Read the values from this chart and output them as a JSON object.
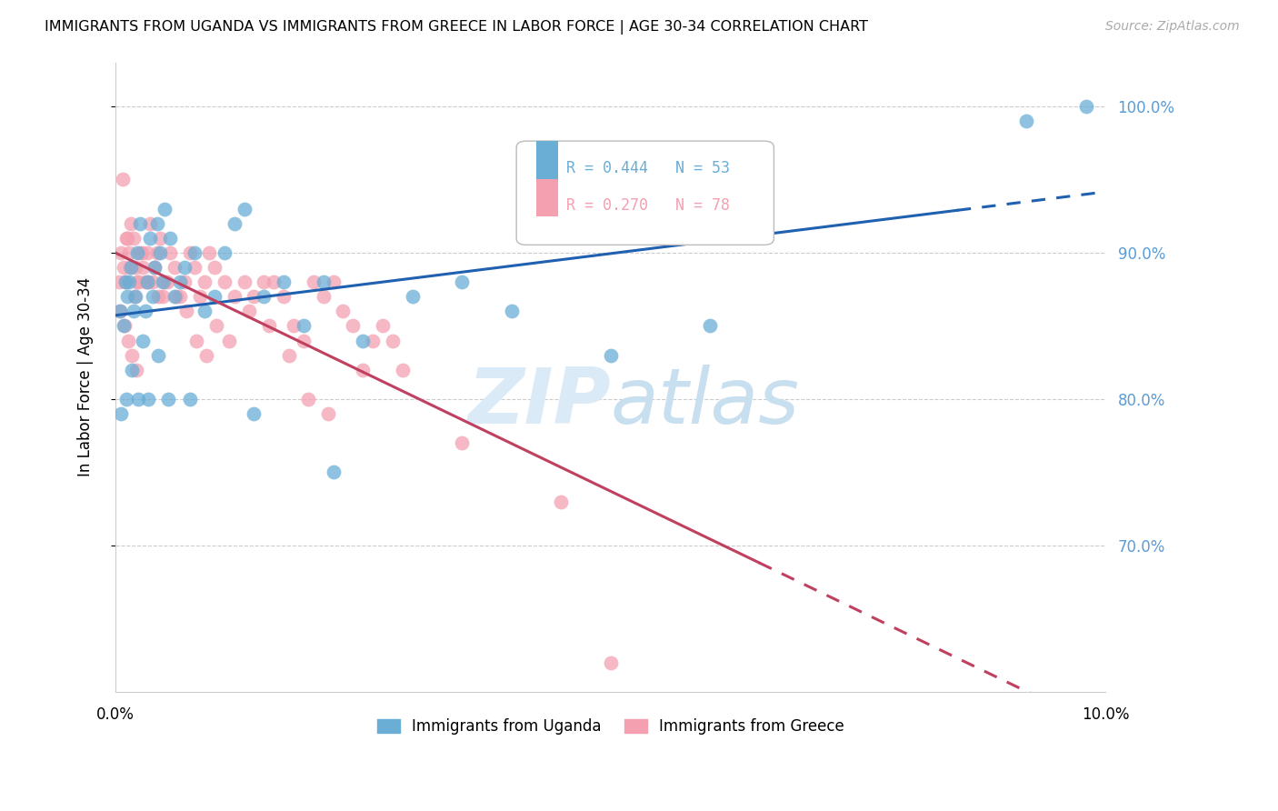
{
  "title": "IMMIGRANTS FROM UGANDA VS IMMIGRANTS FROM GREECE IN LABOR FORCE | AGE 30-34 CORRELATION CHART",
  "source_text": "Source: ZipAtlas.com",
  "ylabel_left": "In Labor Force | Age 30-34",
  "x_min": 0.0,
  "x_max": 10.0,
  "y_min": 60.0,
  "y_max": 103.0,
  "color_uganda": "#6aaed6",
  "color_greece": "#f4a0b0",
  "color_trendline_uganda": "#2060b0",
  "color_trendline_greece": "#c04060",
  "color_axis_right": "#5b9bd5",
  "watermark_color": "#daeaf7",
  "uganda_x": [
    0.05,
    0.08,
    0.1,
    0.12,
    0.14,
    0.16,
    0.18,
    0.2,
    0.22,
    0.25,
    0.28,
    0.3,
    0.32,
    0.35,
    0.38,
    0.4,
    0.42,
    0.45,
    0.48,
    0.5,
    0.55,
    0.6,
    0.65,
    0.7,
    0.8,
    0.9,
    1.0,
    1.1,
    1.2,
    1.3,
    1.5,
    1.7,
    1.9,
    2.1,
    2.5,
    3.0,
    3.5,
    4.0,
    5.0,
    6.0,
    9.2,
    9.8,
    0.06,
    0.11,
    0.17,
    0.23,
    0.33,
    0.43,
    0.53,
    0.75,
    1.4,
    2.2
  ],
  "uganda_y": [
    86,
    85,
    88,
    87,
    88,
    89,
    86,
    87,
    90,
    92,
    84,
    86,
    88,
    91,
    87,
    89,
    92,
    90,
    88,
    93,
    91,
    87,
    88,
    89,
    90,
    86,
    87,
    90,
    92,
    93,
    87,
    88,
    85,
    88,
    84,
    87,
    88,
    86,
    83,
    85,
    99,
    100,
    79,
    80,
    82,
    80,
    80,
    83,
    80,
    80,
    79,
    75
  ],
  "greece_x": [
    0.04,
    0.06,
    0.08,
    0.1,
    0.12,
    0.14,
    0.16,
    0.18,
    0.2,
    0.22,
    0.25,
    0.28,
    0.3,
    0.32,
    0.35,
    0.38,
    0.4,
    0.42,
    0.45,
    0.48,
    0.5,
    0.55,
    0.6,
    0.65,
    0.7,
    0.75,
    0.8,
    0.85,
    0.9,
    0.95,
    1.0,
    1.1,
    1.2,
    1.3,
    1.4,
    1.5,
    1.6,
    1.7,
    1.8,
    1.9,
    2.0,
    2.1,
    2.2,
    2.3,
    2.4,
    2.5,
    2.6,
    2.7,
    2.8,
    2.9,
    0.07,
    0.11,
    0.15,
    0.19,
    0.23,
    0.27,
    0.33,
    0.43,
    0.52,
    0.62,
    0.72,
    0.82,
    0.92,
    1.02,
    1.15,
    1.35,
    1.55,
    1.75,
    1.95,
    2.15,
    0.05,
    0.09,
    0.13,
    0.17,
    0.21,
    3.5,
    4.5,
    5.0
  ],
  "greece_y": [
    88,
    90,
    89,
    88,
    91,
    90,
    92,
    91,
    89,
    88,
    90,
    89,
    88,
    90,
    92,
    88,
    89,
    90,
    91,
    87,
    88,
    90,
    89,
    87,
    88,
    90,
    89,
    87,
    88,
    90,
    89,
    88,
    87,
    88,
    87,
    88,
    88,
    87,
    85,
    84,
    88,
    87,
    88,
    86,
    85,
    82,
    84,
    85,
    84,
    82,
    95,
    91,
    89,
    87,
    88,
    90,
    88,
    87,
    88,
    87,
    86,
    84,
    83,
    85,
    84,
    86,
    85,
    83,
    80,
    79,
    86,
    85,
    84,
    83,
    82,
    77,
    73,
    62
  ]
}
